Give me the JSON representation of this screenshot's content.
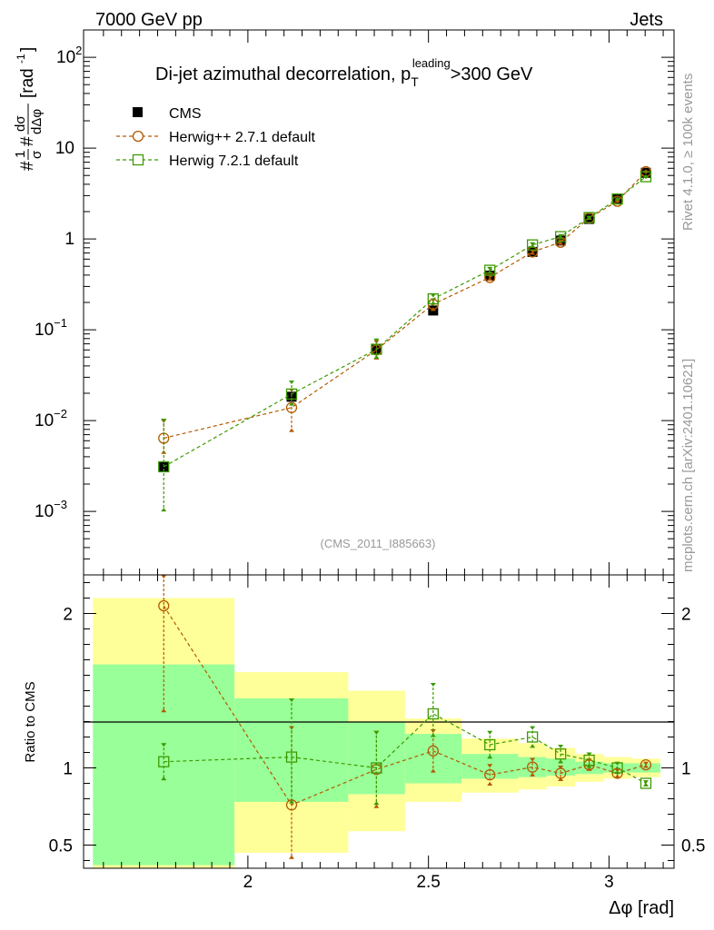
{
  "header": {
    "left": "7000 GeV pp",
    "right": "Jets"
  },
  "side_labels": {
    "rivet": "Rivet 4.1.0, ≥ 100k events",
    "mcplots": "mcplots.cern.ch [arXiv:2401.10621]"
  },
  "colors": {
    "data": "#000000",
    "herwig_pp": "#b35a00",
    "herwig7": "#3c9a00",
    "band_inner": "#99ff99",
    "band_outer": "#ffff99",
    "ref_text": "#999999"
  },
  "chart_data": [
    {
      "type": "scatter",
      "scale": "log",
      "title": "Di-jet azimuthal decorrelation, p",
      "title_sub": "T",
      "title_sup": "leading",
      "title_tail": ">300 GeV",
      "ylabel": "#frac{1}{#sigma}#frac{d#sigma}{d#Delta#phi} [rad^-1]",
      "ylabel_parts": {
        "pre": "#",
        "num1": "1",
        "den1": "σ",
        "mid": "#",
        "num2": "dσ",
        "den2": "dΔφ",
        "post": "[rad",
        "exp": "-1",
        "close": "]"
      },
      "ylim": [
        0.0002,
        200
      ],
      "xlim": [
        1.545,
        3.18
      ],
      "yticks": [
        {
          "v": 0.001,
          "base": "10",
          "exp": "−3"
        },
        {
          "v": 0.01,
          "base": "10",
          "exp": "−2"
        },
        {
          "v": 0.1,
          "base": "10",
          "exp": "−1"
        },
        {
          "v": 1,
          "base": "1",
          "exp": ""
        },
        {
          "v": 10,
          "base": "10",
          "exp": ""
        },
        {
          "v": 100,
          "base": "10",
          "exp": "2"
        }
      ],
      "reference": "(CMS_2011_I885663)",
      "legend": [
        {
          "key": "cms",
          "label": "CMS"
        },
        {
          "key": "hpp",
          "label": "Herwig++ 2.7.1 default"
        },
        {
          "key": "h7",
          "label": "Herwig 7.2.1 default"
        }
      ],
      "series": [
        {
          "name": "CMS",
          "key": "cms",
          "marker": "filled-square",
          "x": [
            1.767,
            2.121,
            2.356,
            2.513,
            2.67,
            2.788,
            2.866,
            2.945,
            3.023,
            3.102
          ],
          "y": [
            0.0031,
            0.0183,
            0.061,
            0.163,
            0.395,
            0.72,
            0.96,
            1.66,
            2.75,
            5.35
          ],
          "err_lo": [
            0.0003,
            0.0015,
            0.006,
            0.01,
            0.03,
            0.05,
            0.06,
            0.08,
            0.12,
            0.2
          ],
          "err_hi": [
            0.0003,
            0.0015,
            0.006,
            0.01,
            0.03,
            0.05,
            0.06,
            0.08,
            0.12,
            0.2
          ]
        },
        {
          "name": "Herwig++ 2.7.1 default",
          "key": "hpp",
          "marker": "open-circle",
          "x": [
            1.767,
            2.121,
            2.356,
            2.513,
            2.67,
            2.788,
            2.866,
            2.945,
            3.023,
            3.102
          ],
          "y": [
            0.0064,
            0.0139,
            0.06,
            0.191,
            0.377,
            0.72,
            0.92,
            1.7,
            2.6,
            5.5
          ],
          "err_lo": [
            0.0021,
            0.0064,
            0.013,
            0.03,
            0.03,
            0.05,
            0.06,
            0.08,
            0.1,
            0.15
          ],
          "err_hi": [
            0.0039,
            0.0086,
            0.017,
            0.03,
            0.03,
            0.05,
            0.06,
            0.08,
            0.1,
            0.15
          ]
        },
        {
          "name": "Herwig 7.2.1 default",
          "key": "h7",
          "marker": "open-square",
          "x": [
            1.767,
            2.121,
            2.356,
            2.513,
            2.67,
            2.788,
            2.866,
            2.945,
            3.023,
            3.102
          ],
          "y": [
            0.0031,
            0.0196,
            0.061,
            0.219,
            0.452,
            0.86,
            1.06,
            1.72,
            2.75,
            4.85
          ],
          "err_lo": [
            0.0021,
            0.005,
            0.013,
            0.03,
            0.04,
            0.06,
            0.07,
            0.08,
            0.1,
            0.15
          ],
          "err_hi": [
            0.0074,
            0.008,
            0.019,
            0.03,
            0.04,
            0.06,
            0.07,
            0.08,
            0.1,
            0.15
          ]
        }
      ]
    },
    {
      "type": "scatter",
      "scale": "linear",
      "ylabel": "Ratio to CMS",
      "xlabel": "Δφ [rad]",
      "xlim": [
        1.545,
        3.18
      ],
      "ylim": [
        0.35,
        2.25
      ],
      "xticks": [
        {
          "v": 2,
          "label": "2"
        },
        {
          "v": 2.5,
          "label": "2.5"
        },
        {
          "v": 3,
          "label": "3"
        }
      ],
      "yticks": [
        {
          "v": 0.5,
          "label": "0.5"
        },
        {
          "v": 1,
          "label": "1"
        },
        {
          "v": 2,
          "label": "2"
        }
      ],
      "bands": [
        {
          "x0": 1.571,
          "x1": 1.963,
          "outer": [
            0.35,
            2.1
          ],
          "inner": [
            0.37,
            1.67
          ]
        },
        {
          "x0": 1.963,
          "x1": 2.278,
          "outer": [
            0.45,
            1.62
          ],
          "inner": [
            0.78,
            1.45
          ]
        },
        {
          "x0": 2.278,
          "x1": 2.435,
          "outer": [
            0.59,
            1.5
          ],
          "inner": [
            0.83,
            1.3
          ]
        },
        {
          "x0": 2.435,
          "x1": 2.592,
          "outer": [
            0.78,
            1.32
          ],
          "inner": [
            0.9,
            1.22
          ]
        },
        {
          "x0": 2.592,
          "x1": 2.749,
          "outer": [
            0.84,
            1.19
          ],
          "inner": [
            0.93,
            1.09
          ]
        },
        {
          "x0": 2.749,
          "x1": 2.827,
          "outer": [
            0.86,
            1.16
          ],
          "inner": [
            0.94,
            1.07
          ]
        },
        {
          "x0": 2.827,
          "x1": 2.906,
          "outer": [
            0.88,
            1.13
          ],
          "inner": [
            0.95,
            1.06
          ]
        },
        {
          "x0": 2.906,
          "x1": 2.985,
          "outer": [
            0.91,
            1.09
          ],
          "inner": [
            0.96,
            1.04
          ]
        },
        {
          "x0": 2.985,
          "x1": 3.063,
          "outer": [
            0.93,
            1.07
          ],
          "inner": [
            0.97,
            1.03
          ]
        },
        {
          "x0": 3.063,
          "x1": 3.142,
          "outer": [
            0.94,
            1.06
          ],
          "inner": [
            0.97,
            1.03
          ]
        }
      ],
      "series": [
        {
          "name": "Herwig++ 2.7.1 default",
          "key": "hpp",
          "marker": "open-circle",
          "x": [
            1.767,
            2.121,
            2.356,
            2.513,
            2.67,
            2.788,
            2.866,
            2.945,
            3.023,
            3.102
          ],
          "y": [
            2.05,
            0.76,
            0.99,
            1.11,
            0.955,
            1.005,
            0.965,
            1.02,
            0.965,
            1.02
          ],
          "err_lo": [
            0.69,
            0.35,
            0.25,
            0.14,
            0.07,
            0.06,
            0.05,
            0.04,
            0.03,
            0.02
          ],
          "err_hi": [
            1.29,
            0.51,
            0.25,
            0.14,
            0.07,
            0.06,
            0.05,
            0.04,
            0.03,
            0.02
          ]
        },
        {
          "name": "Herwig 7.2.1 default",
          "key": "h7",
          "marker": "open-square",
          "x": [
            1.767,
            2.121,
            2.356,
            2.513,
            2.67,
            2.788,
            2.866,
            2.945,
            3.023,
            3.102
          ],
          "y": [
            1.04,
            1.07,
            1.0,
            1.35,
            1.15,
            1.2,
            1.09,
            1.05,
            1.0,
            0.9
          ],
          "err_lo": [
            0.12,
            0.3,
            0.24,
            0.15,
            0.09,
            0.07,
            0.06,
            0.05,
            0.04,
            0.02
          ],
          "err_hi": [
            0.12,
            0.38,
            0.24,
            0.2,
            0.09,
            0.07,
            0.06,
            0.05,
            0.04,
            0.02
          ]
        }
      ]
    }
  ]
}
